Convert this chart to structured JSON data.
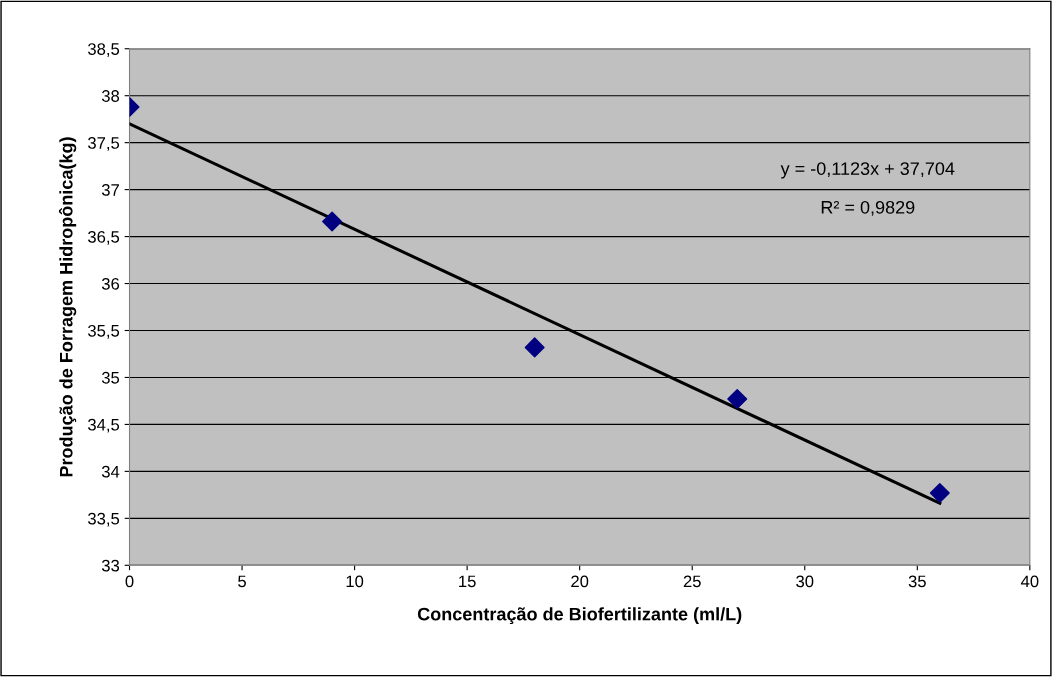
{
  "chart_data": {
    "type": "scatter",
    "xlabel": "Concentração de Biofertilizante (ml/L)",
    "ylabel": "Produção de Forragem Hidropônica(kg)",
    "x": [
      0,
      9,
      18,
      27,
      36
    ],
    "series": [
      {
        "color": "#000080",
        "marker": "diamond",
        "values": [
          37.88,
          36.66,
          35.32,
          34.77,
          33.77
        ]
      },
      {
        "type": "line",
        "color": "#000000",
        "marker": "none",
        "line_style": "solid",
        "x": [
          0,
          36
        ],
        "values": [
          37.7,
          33.66
        ]
      }
    ],
    "annotations": [
      "y = -0,1123x + 37,704",
      "R² = 0,9829"
    ],
    "xlim": [
      0,
      40
    ],
    "xticks": [
      0,
      5,
      10,
      15,
      20,
      25,
      30,
      35,
      40
    ],
    "ylim": [
      33,
      38.5
    ],
    "yticks": [
      33,
      {
        "value": 33.5,
        "label": "33,5"
      },
      34,
      {
        "value": 34.5,
        "label": "34,5"
      },
      35,
      {
        "value": 35.5,
        "label": "35,5"
      },
      36,
      {
        "value": 36.5,
        "label": "36,5"
      },
      37,
      {
        "value": 37.5,
        "label": "37,5"
      },
      38,
      {
        "value": 38.5,
        "label": "38,5"
      }
    ],
    "grid": "y",
    "legend": false
  }
}
